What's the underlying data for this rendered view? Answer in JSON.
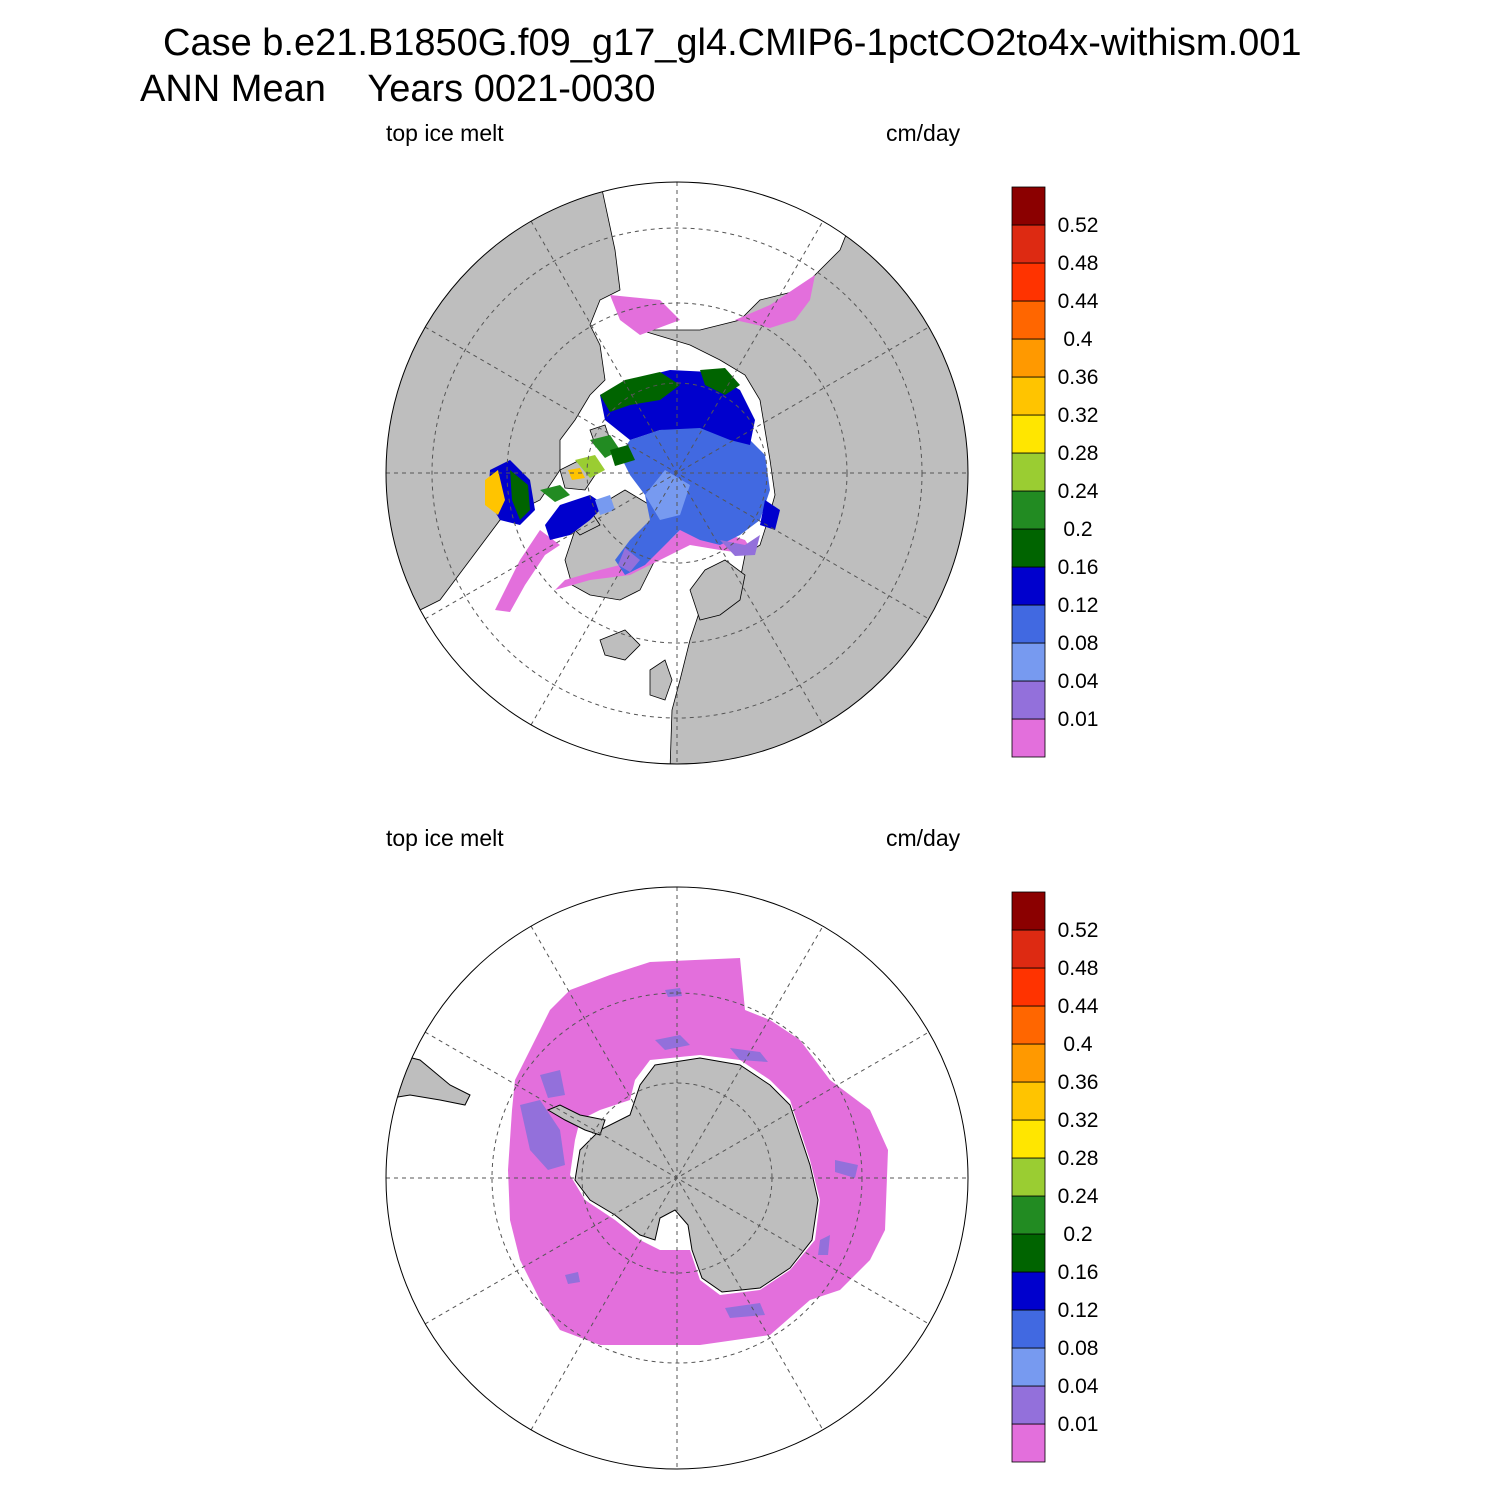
{
  "header": {
    "line1": "Case b.e21.B1850G.f09_g17_gl4.CMIP6-1pctCO2to4x-withism.001",
    "line2": "ANN Mean    Years 0021-0030"
  },
  "panels": [
    {
      "id": "north",
      "variable": "top ice melt",
      "units": "cm/day"
    },
    {
      "id": "south",
      "variable": "top ice melt",
      "units": "cm/day"
    }
  ],
  "colorbar": {
    "levels": [
      "0.01",
      "0.04",
      "0.08",
      "0.12",
      "0.16",
      "0.2",
      "0.24",
      "0.28",
      "0.32",
      "0.36",
      "0.4",
      "0.44",
      "0.48",
      "0.52"
    ],
    "colors": [
      "#e36fdc",
      "#9370db",
      "#779af0",
      "#4169e1",
      "#0000cd",
      "#006400",
      "#228b22",
      "#9acd32",
      "#ffe600",
      "#ffc400",
      "#ff9900",
      "#ff6600",
      "#ff3300",
      "#dd2a12",
      "#8b0000"
    ]
  },
  "map_colors": {
    "land": "#bebebe",
    "ocean": "#ffffff"
  }
}
